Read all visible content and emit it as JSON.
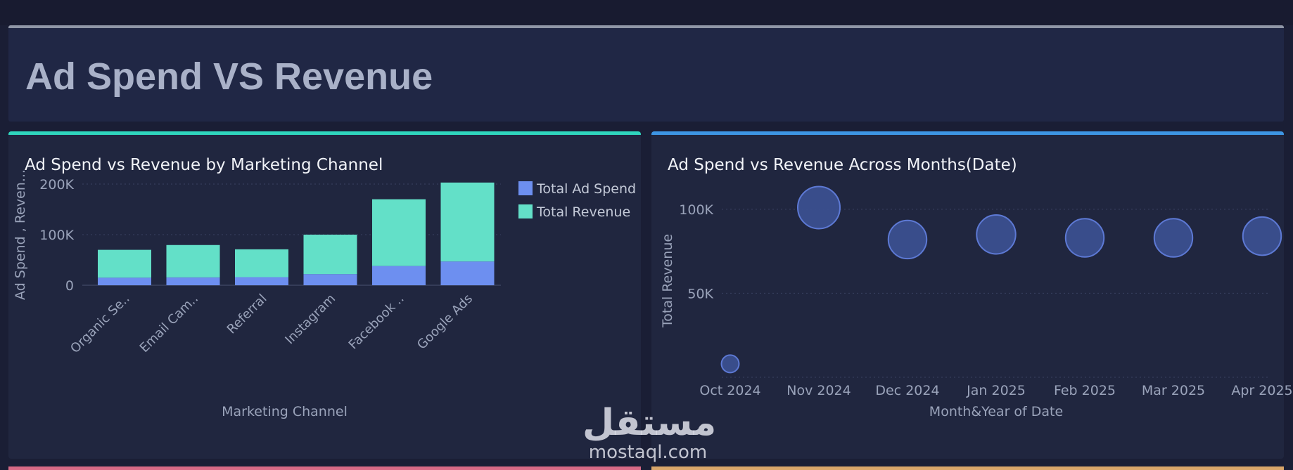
{
  "header": {
    "title": "Ad Spend VS Revenue"
  },
  "charts": [
    {
      "title": "Ad Spend vs Revenue by Marketing Channel",
      "chart_data": {
        "type": "bar",
        "stacked": true,
        "categories": [
          "Organic Se..",
          "Email Cam..",
          "Referral",
          "Instagram",
          "Facebook ..",
          "Google Ads"
        ],
        "series": [
          {
            "name": "Total Ad Spend",
            "values": [
              15000,
              15500,
              16000,
              22000,
              38000,
              47000
            ],
            "color": "#6d8ff0"
          },
          {
            "name": "Total Revenue",
            "values": [
              55000,
              64000,
              55000,
              78000,
              132000,
              156000
            ],
            "color": "#63e0c8"
          }
        ],
        "xlabel": "Marketing Channel",
        "ylabel": "Ad Spend , Reven...",
        "ylim": [
          0,
          200000
        ],
        "yticks": [
          0,
          100000,
          200000
        ],
        "ytick_labels": [
          "0",
          "100K",
          "200K"
        ],
        "legend": "top-right",
        "grid": true
      }
    },
    {
      "title": "Ad Spend vs Revenue Across Months(Date)",
      "chart_data": {
        "type": "scatter",
        "categories": [
          "Oct 2024",
          "Nov 2024",
          "Dec 2024",
          "Jan 2025",
          "Feb 2025",
          "Mar 2025",
          "Apr 2025"
        ],
        "values": [
          8000,
          101000,
          82000,
          85000,
          83000,
          83000,
          84000
        ],
        "sizes": [
          4000,
          55000,
          43000,
          45000,
          43000,
          43000,
          43000
        ],
        "xlabel": "Month&Year of Date",
        "ylabel": "Total Revenue",
        "ylim": [
          0,
          115000
        ],
        "yticks": [
          50000,
          100000
        ],
        "ytick_labels": [
          "50K",
          "100K"
        ],
        "grid": true,
        "bubble_color": "#3b4f8f",
        "bubble_stroke": "#5d79d4"
      }
    }
  ],
  "watermark": {
    "arabic": "مستقل",
    "latin": "mostaql.com"
  }
}
